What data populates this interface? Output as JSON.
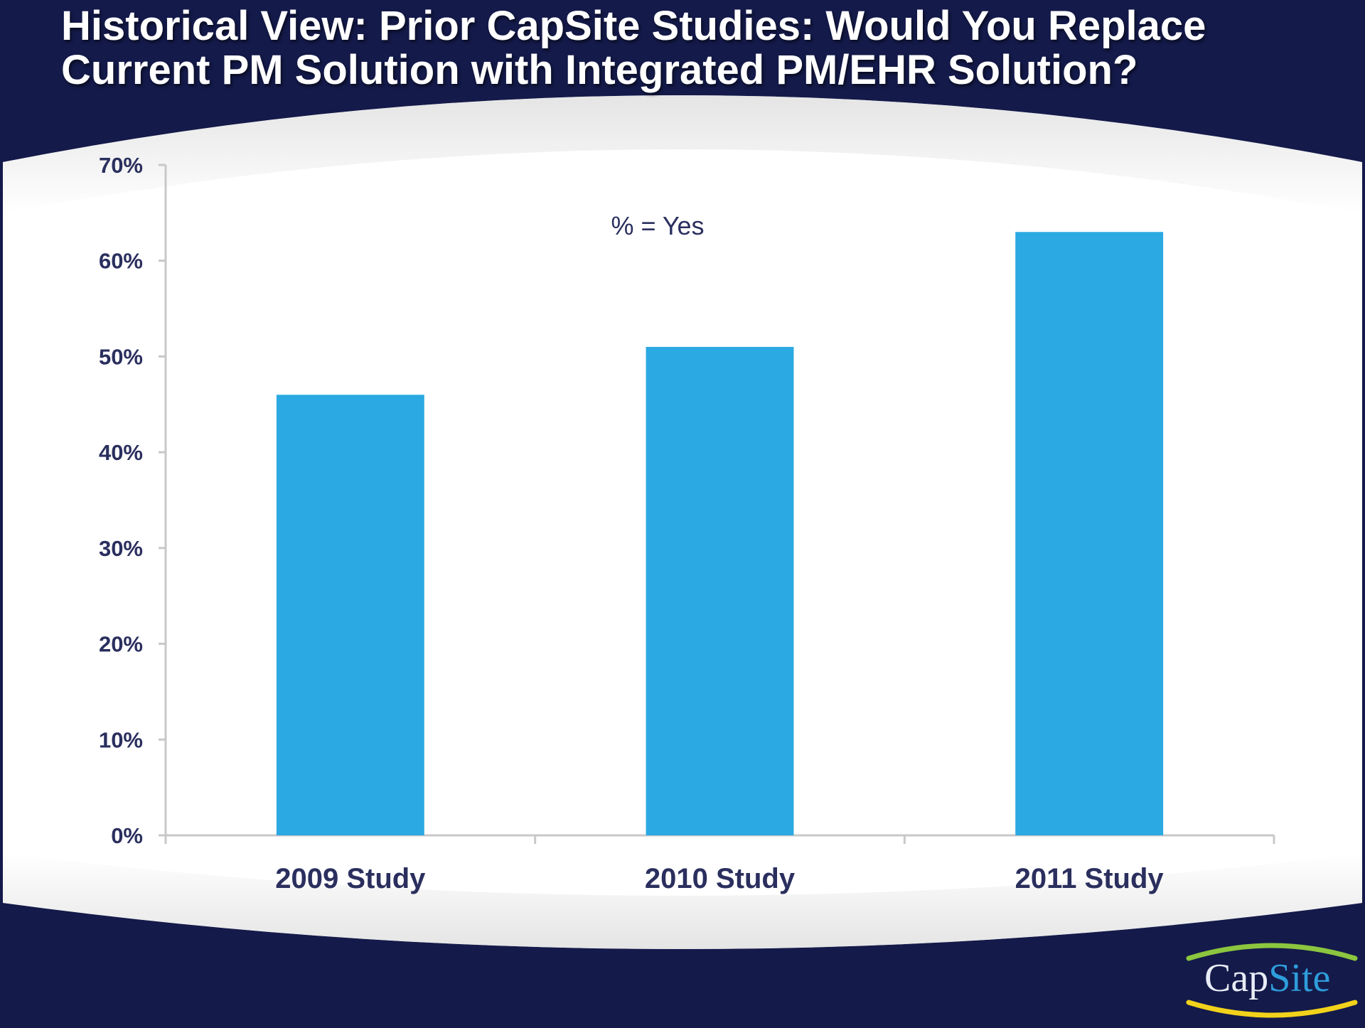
{
  "slide": {
    "title": "Historical View: Prior CapSite Studies: Would You Replace Current PM Solution with Integrated PM/EHR Solution?",
    "logo": {
      "part1": "Cap",
      "part2": "Site"
    }
  },
  "colors": {
    "frame": "#141a4a",
    "bar": "#2aa9e2",
    "axis": "#c8c8c8",
    "text": "#2a2f5e",
    "logo_arc_top": "#8cc63f",
    "logo_arc_bottom": "#f2d21b"
  },
  "chart_data": {
    "type": "bar",
    "categories": [
      "2009 Study",
      "2010 Study",
      "2011 Study"
    ],
    "values": [
      46,
      51,
      63
    ],
    "unit": "%",
    "annotation": "% = Yes",
    "ylim": [
      0,
      70
    ],
    "yticks": [
      0,
      10,
      20,
      30,
      40,
      50,
      60,
      70
    ],
    "ytick_labels": [
      "0%",
      "10%",
      "20%",
      "30%",
      "40%",
      "50%",
      "60%",
      "70%"
    ],
    "grid": false,
    "legend": "none"
  }
}
